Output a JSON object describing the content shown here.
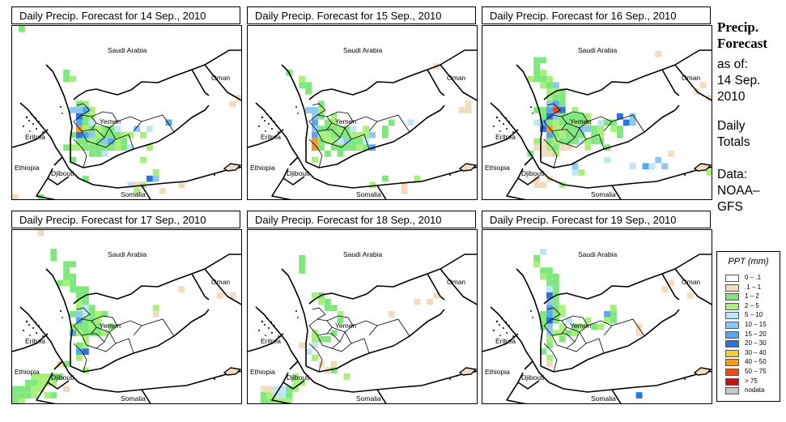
{
  "panels": [
    {
      "title": "Daily Precip. Forecast for  14 Sep., 2010"
    },
    {
      "title": "Daily Precip. Forecast for  15 Sep., 2010"
    },
    {
      "title": "Daily Precip. Forecast for  16 Sep., 2010"
    },
    {
      "title": "Daily Precip. Forecast for  17 Sep., 2010"
    },
    {
      "title": "Daily Precip. Forecast for  18 Sep., 2010"
    },
    {
      "title": "Daily Precip. Forecast for  19 Sep., 2010"
    }
  ],
  "map_labels": {
    "saudi_arabia": "Saudi Arabia",
    "oman": "Oman",
    "yemen": "Yemen",
    "eritrea": "Eritrea",
    "ethiopia": "Ethiopia",
    "djibouti": "Djibouti",
    "somalia": "Somalia"
  },
  "sidebar": {
    "title_line1": "Precip.",
    "title_line2": "Forecast",
    "asof_line1": "as of:",
    "asof_line2": "14 Sep.",
    "asof_line3": "2010",
    "daily_line1": "Daily",
    "daily_line2": "Totals",
    "data_line1": "Data:",
    "data_line2": "NOAA–",
    "data_line3": "GFS"
  },
  "legend": {
    "title": "PPT (mm)",
    "items": [
      {
        "label": "0 – .1",
        "color": "#ffffff"
      },
      {
        "label": ".1 – 1",
        "color": "#f2dcc0"
      },
      {
        "label": "1 – 2",
        "color": "#7ee87e"
      },
      {
        "label": "2 – 5",
        "color": "#a8f078"
      },
      {
        "label": "5 – 10",
        "color": "#bfe6f5"
      },
      {
        "label": "10 – 15",
        "color": "#8ec8f0"
      },
      {
        "label": "15 – 20",
        "color": "#5aa6ec"
      },
      {
        "label": "20 – 30",
        "color": "#2e72e0"
      },
      {
        "label": "30 – 40",
        "color": "#f5cc30"
      },
      {
        "label": "40 – 50",
        "color": "#f59a20"
      },
      {
        "label": "50 – 75",
        "color": "#e84c14"
      },
      {
        "label": "> 75",
        "color": "#c01414"
      },
      {
        "label": "nodata",
        "color": "#c8c8c8"
      }
    ]
  },
  "cell_colors": {
    "a": "#7ee87e",
    "b": "#a8f078",
    "c": "#bfe6f5",
    "d": "#8ec8f0",
    "e": "#5aa6ec",
    "f": "#2e72e0",
    "g": "#f2dcc0",
    "h": "#f59a20",
    "i": "#e84c14",
    "j": "#c01414"
  },
  "precip_grids": [
    [
      ".a..................................",
      "....................................",
      "....................................",
      "....................................",
      "....................................",
      "....................................",
      "....................................",
      "........a...........................",
      "........ab..........................",
      "....................................",
      "....................................",
      "...................................g",
      "..........ab......................g.",
      ".........ddeb.......................",
      "..........fab.......................",
      "..........eac...........e...........",
      "..........hbabaac..d.c..............",
      ".........afedbaaabb.b...............",
      "..........aabadeba..................",
      "........abbaaaaabac..b..............",
      "............aac.....................",
      ".........a..........b...............",
      "....................................",
      "......................b.............",
      "...........a.........fd.............",
      "..................cgb.....g.........",
      "...................b...g............",
      "g...a..............................."
    ],
    [
      "....................................",
      "....................................",
      "....................................",
      "....................................",
      "....................................",
      "....................................",
      ".............................g......",
      "......a.............................",
      "........b...........................",
      "........aa..........................",
      ".........a..........................",
      "....................................",
      "...........a......................g.",
      ".........ddb.....................gg.",
      "..........da.b......................",
      "..........e.ab........a..c..........",
      "..........daaabac.b..a..............",
      "..........ebbaaabbbd.a..............",
      "..........habbcdaac.................",
      "..........ha.aaaabae................",
      "............a.a.....................",
      "..........b.........................",
      "....................................",
      "....................................",
      ".....................a....b.........",
      "...................b....g...........",
      "........................g...........",
      "....................................",
      "....................................",
      "........................g..........."
    ],
    [
      "....................................",
      "....................................",
      "....................................",
      "....................................",
      "...........................g........",
      "........aa..........................",
      "........a...........................",
      "........ab..........................",
      ".......baab.........................",
      ".........bad......................g.",
      "..........bba....................g..",
      "..........baa......................g",
      "..........dea.......................",
      "........aaeif.b.....................",
      ".........afdaaaab....f.d............",
      "........ceabaabab.caa.fd............",
      ".........fhbbaaddab.ba..............",
      "..........eabaaa.ab..a..............",
      "........bgabaaacbaa.................",
      "........ggbagg..b..a................",
      ".......a.ggb.................g......",
      "...................c.......d.........",
      "..............d........c.ec.d......",
      "..............cb...................b",
      "........g.g.........................",
      "........gg..b.......................",
      "....................................",
      "...................................."
    ],
    [
      "....g...............................",
      "....................................",
      "....................................",
      "......a.............................",
      "......a.............................",
      "........aa..........................",
      "........a...........................",
      "........aa..........................",
      ".......aba..........................",
      ".........aaa..............g.........",
      "..........aa....................g.g.",
      "..........ba........................",
      "..........bca.........b.............",
      ".........adcaba.......g.............",
      "..........eaab......................",
      ".........baaba.a....................",
      ".........ebaaab.....................",
      "...........b........................",
      "..........ab........................",
      "..........ef........................",
      "..........b.........................",
      ".......ga...........................",
      "...........b........................",
      "...bbbaa............................",
      "..aabbb.............................",
      "aaabb...g...........................",
      "aaab.ba.............................",
      "ab..................................",
      "...................................."
    ],
    [
      "....................................",
      "....................................",
      "....................................",
      "....................................",
      "........a...........................",
      "........a...........................",
      "........a...........................",
      "....................................",
      "....................................",
      "....................................",
      "..........ba.................g......",
      "...........ba.............g.g.......",
      "............aa.......................",
      "..............b.......g.............",
      "..............a.....................",
      "....................................",
      "..........b..a......................",
      "..........baa.......................",
      "........g.c.........................",
      ".........c..........................",
      "..........b.........................",
      "...........g.g......................",
      "............ga.......................",
      ".......b.......b.....................",
      ".......bb...........................",
      "..ggccab............................",
      "..abcca.............................",
      "..aabbb............................."
    ],
    [
      "....................................",
      "....................................",
      "....................................",
      ".........c..........................",
      "........a...........................",
      "........b...........................",
      ".........aa.........................",
      ".........baa........................",
      "..........aa.................g......",
      "..........ca................g.......",
      "..........fa....................g...",
      "..........da........................",
      "..........eab.......b...............",
      ".........aeab......ea...............",
      ".........afa.c..b..ba...............",
      ".........ad.b.ab.ab.....g...........",
      "..........dbbab.........g...........",
      "..........b.a.......................",
      "..........a.........................",
      ".........a...........................",
      "..........b.........................",
      "..........g.........................",
      "....................................",
      "....................................",
      "....................................",
      "....................................",
      "........................f...........",
      "...................................."
    ]
  ]
}
